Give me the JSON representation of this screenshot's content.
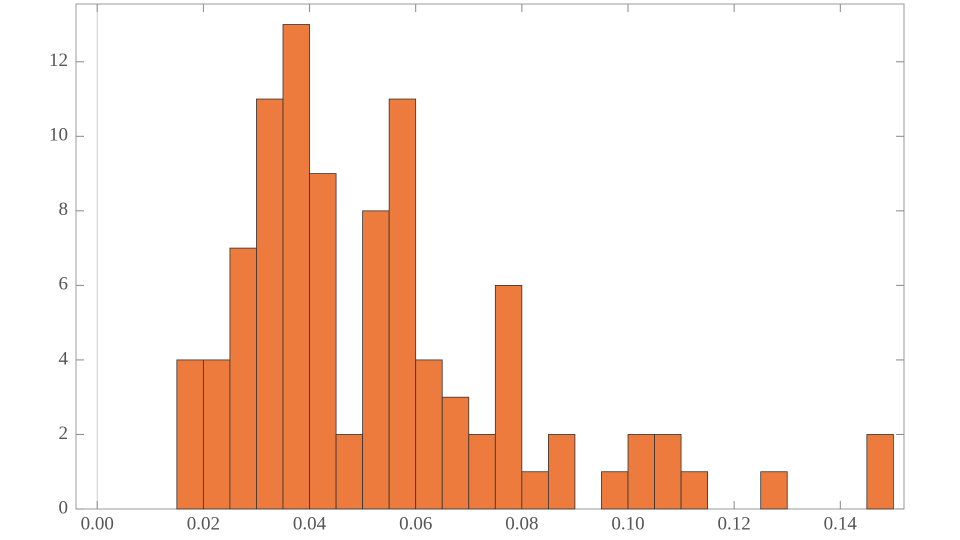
{
  "chart_data": {
    "type": "histogram",
    "bins": [
      0.015,
      0.02,
      0.025,
      0.03,
      0.035,
      0.04,
      0.045,
      0.05,
      0.055,
      0.06,
      0.065,
      0.07,
      0.075,
      0.08,
      0.085,
      0.09,
      0.095,
      0.1,
      0.105,
      0.11,
      0.115,
      0.12,
      0.125,
      0.13,
      0.135,
      0.14,
      0.145,
      0.15
    ],
    "values": [
      4,
      4,
      7,
      11,
      13,
      9,
      2,
      8,
      11,
      4,
      3,
      2,
      6,
      1,
      2,
      0,
      1,
      2,
      2,
      1,
      0,
      0,
      1,
      0,
      0,
      0,
      2
    ],
    "color": "#ec7b3d",
    "xlim": [
      -0.004,
      0.152
    ],
    "ylim": [
      0,
      13.55
    ],
    "xticks": [
      {
        "value": 0,
        "label": "0.00"
      },
      {
        "value": 0.02,
        "label": "0.02"
      },
      {
        "value": 0.04,
        "label": "0.04"
      },
      {
        "value": 0.06,
        "label": "0.06"
      },
      {
        "value": 0.08,
        "label": "0.08"
      },
      {
        "value": 0.1,
        "label": "0.10"
      },
      {
        "value": 0.12,
        "label": "0.12"
      },
      {
        "value": 0.14,
        "label": "0.14"
      }
    ],
    "yticks": [
      0,
      2,
      4,
      6,
      8,
      10,
      12
    ],
    "grid": false
  }
}
